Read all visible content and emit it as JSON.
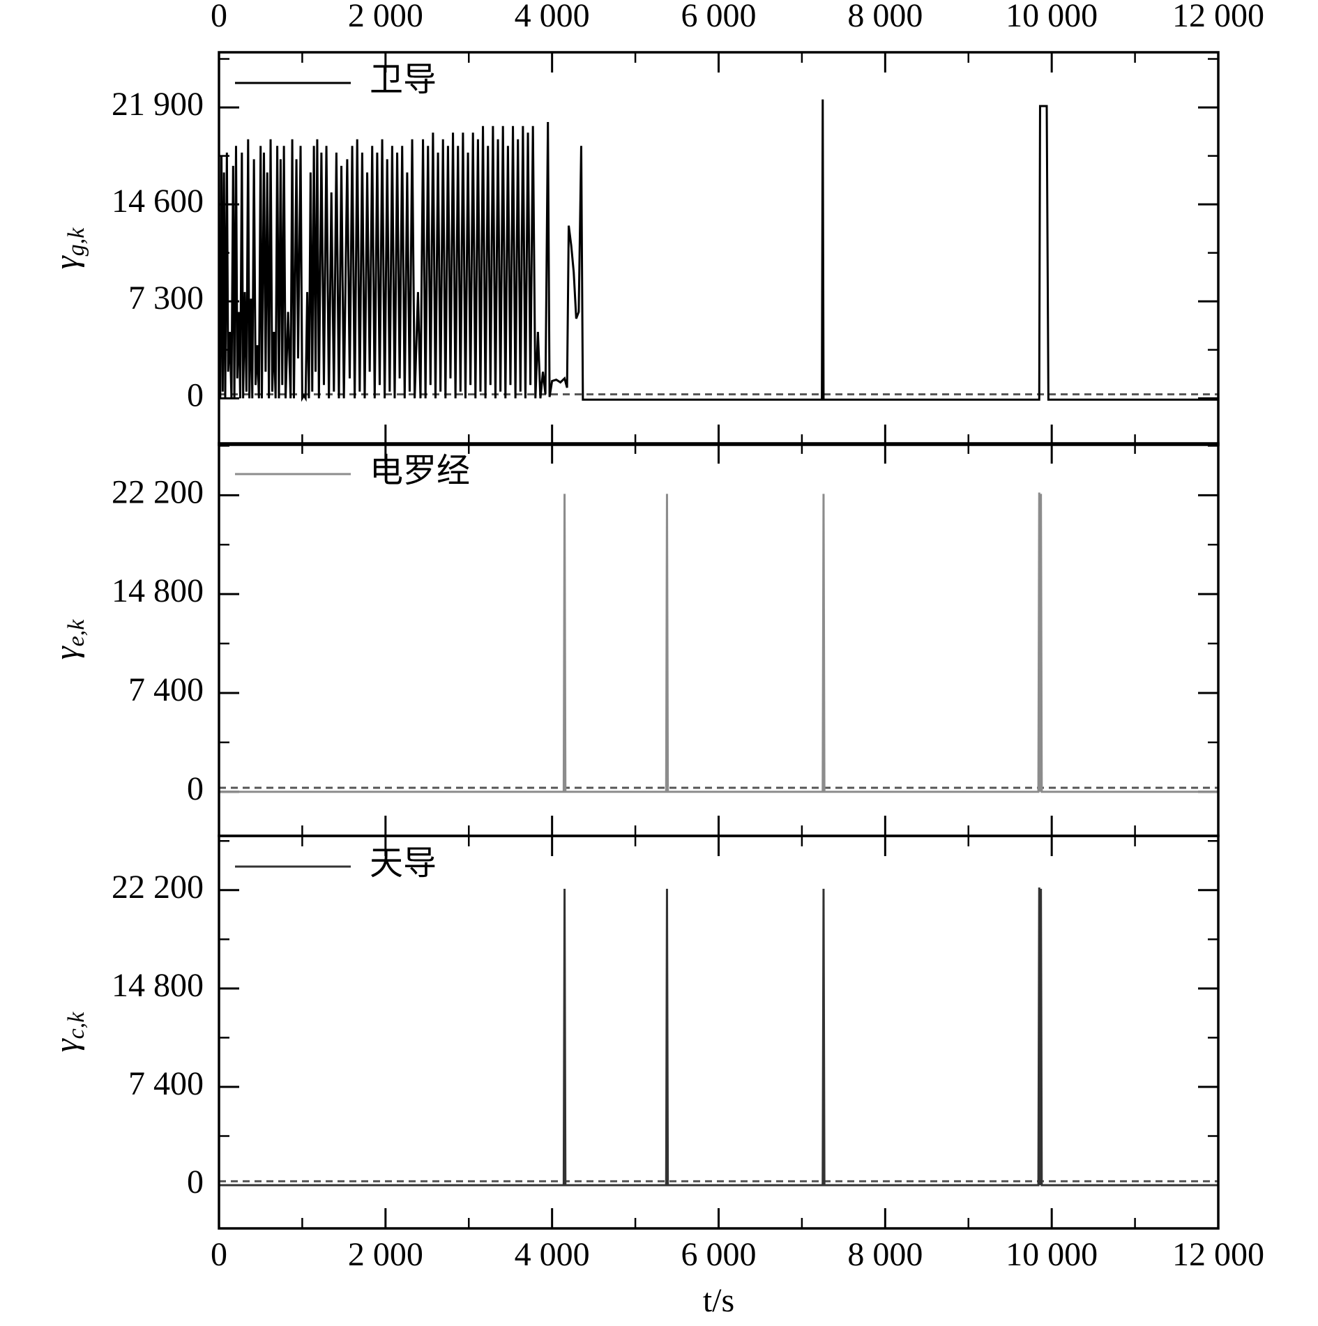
{
  "chart_data": [
    {
      "type": "line",
      "ylabel": "γ",
      "ylabel_subscript": "g,k",
      "xtick_labels": "top",
      "xlim": [
        0,
        12000
      ],
      "ylim": [
        -3500,
        26050
      ],
      "xticks": [
        0,
        {
          "value": 2000,
          "label": "2 000"
        },
        {
          "value": 4000,
          "label": "4 000"
        },
        {
          "value": 6000,
          "label": "6 000"
        },
        {
          "value": 8000,
          "label": "8 000"
        },
        {
          "value": 10000,
          "label": "10 000"
        },
        {
          "value": 12000,
          "label": "12 000"
        }
      ],
      "yticks": [
        0,
        {
          "value": 7300,
          "label": "7 300"
        },
        {
          "value": 14600,
          "label": "14 600"
        },
        {
          "value": 21900,
          "label": "21 900"
        }
      ],
      "reference_line": 300,
      "reference_color": "#555555",
      "x": [
        0,
        15,
        30,
        45,
        60,
        75,
        95,
        110,
        130,
        150,
        170,
        185,
        205,
        220,
        240,
        255,
        275,
        290,
        310,
        330,
        350,
        365,
        385,
        400,
        420,
        440,
        460,
        480,
        500,
        515,
        540,
        560,
        580,
        600,
        620,
        640,
        660,
        680,
        700,
        720,
        740,
        760,
        780,
        800,
        830,
        860,
        880,
        900,
        930,
        950,
        980,
        1000,
        1020,
        1040,
        1060,
        1080,
        1100,
        1120,
        1140,
        1160,
        1180,
        1200,
        1230,
        1260,
        1290,
        1320,
        1350,
        1380,
        1410,
        1440,
        1470,
        1500,
        1540,
        1570,
        1600,
        1630,
        1660,
        1690,
        1720,
        1750,
        1780,
        1810,
        1840,
        1870,
        1900,
        1930,
        1960,
        1990,
        2020,
        2050,
        2080,
        2110,
        2140,
        2170,
        2200,
        2230,
        2260,
        2290,
        2320,
        2350,
        2390,
        2420,
        2450,
        2480,
        2510,
        2540,
        2570,
        2600,
        2630,
        2660,
        2690,
        2720,
        2750,
        2780,
        2810,
        2840,
        2870,
        2900,
        2930,
        2960,
        2990,
        3020,
        3050,
        3080,
        3110,
        3140,
        3170,
        3200,
        3230,
        3260,
        3290,
        3320,
        3350,
        3380,
        3410,
        3440,
        3470,
        3500,
        3530,
        3560,
        3590,
        3620,
        3650,
        3680,
        3710,
        3740,
        3770,
        3800,
        3830,
        3860,
        3890,
        3920,
        3950,
        3970,
        4000,
        4050,
        4100,
        4150,
        4180,
        4200,
        4230,
        4260,
        4290,
        4320,
        4350,
        4370,
        7240,
        7250,
        7260,
        9850,
        9860,
        9940,
        9960,
        12000
      ],
      "series": [
        {
          "name": "卫导",
          "color": "#000000",
          "values": [
            9500,
            0,
            18200,
            500,
            17000,
            0,
            18500,
            2000,
            5000,
            0,
            17500,
            0,
            19000,
            1500,
            6500,
            0,
            18500,
            0,
            8000,
            500,
            19500,
            0,
            7500,
            0,
            18000,
            1000,
            4000,
            0,
            19000,
            0,
            18500,
            2000,
            17000,
            0,
            19500,
            500,
            5000,
            0,
            19000,
            0,
            18000,
            1000,
            19000,
            0,
            6500,
            0,
            19500,
            0,
            18000,
            3000,
            19000,
            0,
            200,
            0,
            8000,
            0,
            17000,
            500,
            19000,
            2000,
            19500,
            0,
            18500,
            1000,
            19000,
            0,
            15500,
            500,
            18500,
            0,
            17500,
            0,
            18000,
            1500,
            19000,
            0,
            19500,
            500,
            18500,
            0,
            17000,
            2000,
            19000,
            0,
            18500,
            1000,
            19500,
            0,
            18000,
            500,
            19000,
            0,
            18500,
            1500,
            19000,
            0,
            17000,
            500,
            19500,
            0,
            8000,
            0,
            19500,
            0,
            19000,
            1000,
            20000,
            0,
            18500,
            500,
            19500,
            0,
            19000,
            1500,
            20000,
            0,
            19000,
            500,
            20000,
            0,
            18500,
            1000,
            20000,
            0,
            19500,
            500,
            20500,
            0,
            19000,
            1000,
            20500,
            0,
            19500,
            500,
            20500,
            0,
            19000,
            1000,
            20500,
            0,
            19500,
            500,
            20500,
            0,
            20000,
            1000,
            20500,
            0,
            5000,
            0,
            2000,
            300,
            20800,
            100,
            1300,
            1400,
            1200,
            1500,
            800,
            13000,
            11500,
            9500,
            6000,
            6500,
            19000,
            -100,
            -100,
            22500,
            -100,
            -100,
            22000,
            22000,
            -100,
            -100
          ]
        }
      ]
    },
    {
      "type": "line",
      "ylabel": "γ",
      "ylabel_subscript": "e,k",
      "xtick_labels": "none",
      "xlim": [
        0,
        12000
      ],
      "ylim": [
        -3300,
        26080
      ],
      "xticks": [
        0,
        2000,
        4000,
        6000,
        8000,
        10000,
        12000
      ],
      "yticks": [
        0,
        {
          "value": 7400,
          "label": "7 400"
        },
        {
          "value": 14800,
          "label": "14 800"
        },
        {
          "value": 22200,
          "label": "22 200"
        }
      ],
      "reference_line": 300,
      "reference_color": "#555555",
      "x": [
        0,
        4140,
        4150,
        4160,
        5370,
        5380,
        5390,
        7250,
        7260,
        7270,
        9840,
        9850,
        9860,
        9870,
        9880,
        12000
      ],
      "series": [
        {
          "name": "电罗经",
          "color": "#8c8c8c",
          "values": [
            0,
            0,
            22300,
            0,
            0,
            22300,
            0,
            0,
            22300,
            0,
            0,
            22400,
            0,
            22300,
            0,
            0
          ]
        }
      ]
    },
    {
      "type": "line",
      "ylabel": "γ",
      "ylabel_subscript": "c,k",
      "xtick_labels": "bottom",
      "xlabel": "t/s",
      "xlim": [
        0,
        12000
      ],
      "ylim": [
        -3250,
        26280
      ],
      "xticks": [
        0,
        {
          "value": 2000,
          "label": "2 000"
        },
        {
          "value": 4000,
          "label": "4 000"
        },
        {
          "value": 6000,
          "label": "6 000"
        },
        {
          "value": 8000,
          "label": "8 000"
        },
        {
          "value": 10000,
          "label": "10 000"
        },
        {
          "value": 12000,
          "label": "12 000"
        }
      ],
      "yticks": [
        0,
        {
          "value": 7400,
          "label": "7 400"
        },
        {
          "value": 14800,
          "label": "14 800"
        },
        {
          "value": 22200,
          "label": "22 200"
        }
      ],
      "reference_line": 300,
      "reference_color": "#555555",
      "x": [
        0,
        4140,
        4150,
        4160,
        5370,
        5380,
        5390,
        7250,
        7260,
        7270,
        9840,
        9850,
        9860,
        9870,
        9880,
        12000
      ],
      "series": [
        {
          "name": "天导",
          "color": "#333333",
          "values": [
            0,
            0,
            22300,
            0,
            0,
            22300,
            0,
            0,
            22300,
            0,
            0,
            22400,
            0,
            22300,
            0,
            0
          ]
        }
      ]
    }
  ]
}
